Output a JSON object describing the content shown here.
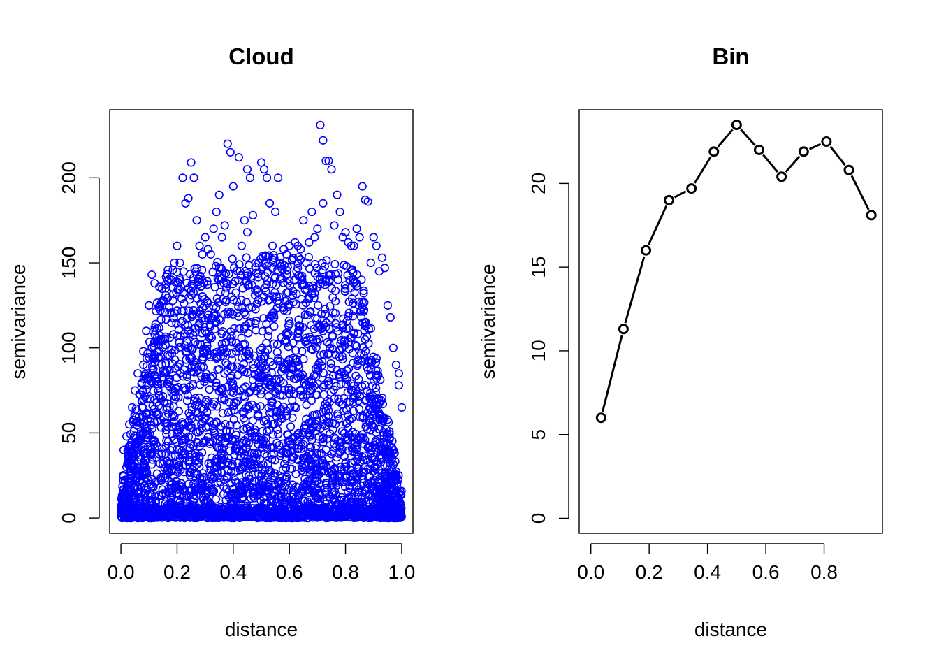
{
  "colors": {
    "cloud_points": "#0000ff",
    "bin_line": "#000000",
    "axes": "#000000",
    "background": "#ffffff"
  },
  "chart_data": [
    {
      "type": "scatter",
      "title": "Cloud",
      "xlabel": "distance",
      "ylabel": "semivariance",
      "xlim": [
        -0.04,
        1.04
      ],
      "ylim": [
        -9,
        240
      ],
      "xticks": [
        0.0,
        0.2,
        0.4,
        0.6,
        0.8,
        1.0
      ],
      "xtick_labels": [
        "0.0",
        "0.2",
        "0.4",
        "0.6",
        "0.8",
        "1.0"
      ],
      "yticks": [
        0,
        50,
        100,
        150,
        200
      ],
      "ytick_labels": [
        "0",
        "50",
        "100",
        "150",
        "200"
      ],
      "marker": "open-circle",
      "grid": false,
      "series": [
        {
          "x": [
            0.71,
            0.72,
            0.73,
            0.38,
            0.39,
            0.4,
            0.42,
            0.5,
            0.51,
            0.52,
            0.53,
            0.56,
            0.45,
            0.46,
            0.47,
            0.74,
            0.75,
            0.72,
            0.25,
            0.26,
            0.24,
            0.27,
            0.22,
            0.23,
            0.33,
            0.34,
            0.35,
            0.36,
            0.37,
            0.44,
            0.45,
            0.55,
            0.6,
            0.65,
            0.68,
            0.7,
            0.77,
            0.78,
            0.86,
            0.87,
            0.88,
            0.9,
            0.91,
            0.93,
            0.94,
            0.95,
            0.96,
            0.98,
            0.99,
            1.0,
            0.11,
            0.12,
            0.1,
            0.09,
            0.08,
            0.06,
            0.05,
            0.04,
            0.03,
            0.02,
            0.01,
            0.02,
            0.05,
            0.08,
            0.14,
            0.18,
            0.2,
            0.21,
            0.3,
            0.32,
            0.43,
            0.48,
            0.58,
            0.62,
            0.66,
            0.69,
            0.76,
            0.8,
            0.82,
            0.84,
            0.89,
            0.92,
            0.97,
            0.99,
            0.15,
            0.16,
            0.19,
            0.28,
            0.29,
            0.31,
            0.49,
            0.54,
            0.57,
            0.59,
            0.61,
            0.63,
            0.64,
            0.67,
            0.79,
            0.81,
            0.83,
            0.85
          ],
          "y": [
            231,
            222,
            210,
            220,
            215,
            195,
            212,
            209,
            205,
            200,
            185,
            200,
            205,
            200,
            178,
            210,
            205,
            185,
            209,
            200,
            188,
            175,
            200,
            185,
            170,
            180,
            190,
            165,
            172,
            175,
            168,
            180,
            160,
            175,
            180,
            170,
            190,
            180,
            195,
            187,
            186,
            165,
            160,
            153,
            147,
            125,
            118,
            90,
            85,
            65,
            143,
            138,
            125,
            110,
            98,
            85,
            75,
            65,
            55,
            48,
            40,
            30,
            60,
            90,
            125,
            140,
            160,
            150,
            165,
            155,
            160,
            150,
            158,
            162,
            150,
            165,
            172,
            168,
            160,
            170,
            150,
            145,
            100,
            78,
            128,
            135,
            150,
            160,
            155,
            158,
            150,
            160,
            148,
            155,
            152,
            160,
            158,
            162,
            165,
            162,
            160,
            165
          ]
        }
      ]
    },
    {
      "type": "line",
      "title": "Bin",
      "xlabel": "distance",
      "ylabel": "semivariance",
      "xlim": [
        -0.04,
        1.0
      ],
      "ylim": [
        -0.9,
        24.4
      ],
      "xticks": [
        0.0,
        0.2,
        0.4,
        0.6,
        0.8
      ],
      "xtick_labels": [
        "0.0",
        "0.2",
        "0.4",
        "0.6",
        "0.8"
      ],
      "yticks": [
        0,
        5,
        10,
        15,
        20
      ],
      "ytick_labels": [
        "0",
        "5",
        "10",
        "15",
        "20"
      ],
      "marker": "open-circle",
      "grid": false,
      "series": [
        {
          "x": [
            0.035,
            0.112,
            0.189,
            0.268,
            0.345,
            0.422,
            0.5,
            0.577,
            0.654,
            0.73,
            0.808,
            0.885,
            0.962
          ],
          "y": [
            6.0,
            11.3,
            16.0,
            19.0,
            19.7,
            21.9,
            23.5,
            22.0,
            20.4,
            21.9,
            22.5,
            20.8,
            18.1
          ]
        }
      ]
    }
  ]
}
